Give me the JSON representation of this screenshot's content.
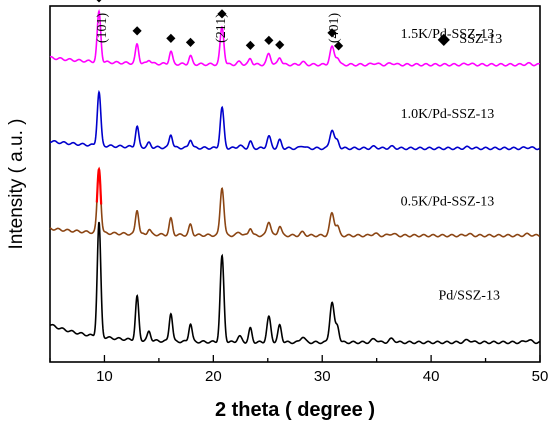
{
  "chart_data": {
    "type": "line",
    "xlabel": "2 theta ( degree )",
    "ylabel": "Intensity ( a.u. )",
    "xlim": [
      5,
      50
    ],
    "xticks": [
      10,
      20,
      30,
      40,
      50
    ],
    "grid": false,
    "legend": {
      "marker": "◆",
      "text": "SSZ-13",
      "placement": "top-right"
    },
    "peak_annotations": [
      "(101)",
      "(211)",
      "(401)"
    ],
    "ssz13_marker_positions": [
      9.5,
      13.0,
      16.1,
      17.9,
      20.8,
      23.4,
      25.1,
      26.1,
      30.9,
      31.5
    ],
    "peaks": [
      {
        "x": 9.5,
        "w": 0.16,
        "rel": 1.0
      },
      {
        "x": 13.0,
        "w": 0.15,
        "rel": 0.38
      },
      {
        "x": 14.1,
        "w": 0.15,
        "rel": 0.08
      },
      {
        "x": 16.1,
        "w": 0.15,
        "rel": 0.25
      },
      {
        "x": 17.9,
        "w": 0.15,
        "rel": 0.16
      },
      {
        "x": 20.8,
        "w": 0.17,
        "rel": 0.75
      },
      {
        "x": 22.4,
        "w": 0.2,
        "rel": 0.05
      },
      {
        "x": 23.4,
        "w": 0.15,
        "rel": 0.12
      },
      {
        "x": 25.1,
        "w": 0.18,
        "rel": 0.22
      },
      {
        "x": 26.1,
        "w": 0.16,
        "rel": 0.15
      },
      {
        "x": 28.2,
        "w": 0.2,
        "rel": 0.05
      },
      {
        "x": 30.9,
        "w": 0.2,
        "rel": 0.35
      },
      {
        "x": 31.4,
        "w": 0.16,
        "rel": 0.14
      },
      {
        "x": 34.8,
        "w": 0.25,
        "rel": 0.03
      },
      {
        "x": 36.4,
        "w": 0.25,
        "rel": 0.03
      },
      {
        "x": 43.4,
        "w": 0.3,
        "rel": 0.02
      },
      {
        "x": 48.9,
        "w": 0.3,
        "rel": 0.02
      }
    ],
    "series": [
      {
        "name": "1.5K/Pd-SSZ-13",
        "color": "#ff00ff",
        "baseline": 0.835,
        "scale": 0.14,
        "label_x": 41.5,
        "label_y": 0.91
      },
      {
        "name": "1.0K/Pd-SSZ-13",
        "color": "#0000cc",
        "baseline": 0.6,
        "scale": 0.15,
        "label_x": 41.5,
        "label_y": 0.685
      },
      {
        "name": "0.5K/Pd-SSZ-13",
        "color": "#8b4513",
        "overlay_color": "#ff0000",
        "baseline": 0.355,
        "scale": 0.18,
        "label_x": 41.5,
        "label_y": 0.44
      },
      {
        "name": "Pd/SSZ-13",
        "color": "#000000",
        "baseline": 0.055,
        "scale": 0.32,
        "label_x": 43.5,
        "label_y": 0.175
      }
    ]
  }
}
